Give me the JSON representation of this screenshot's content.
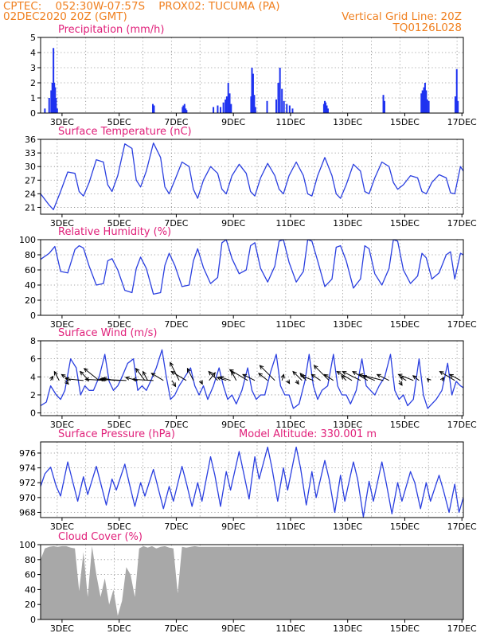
{
  "header": {
    "line1_left": "CPTEC:    052:30W-07:57S    PROX02: TUCUMA (PA)",
    "line2_left": "02DEC2020 20Z (GMT)",
    "line2_right": "Vertical Grid Line: 20Z",
    "line3_right": "TQ0126L028"
  },
  "colors": {
    "header_text": "#f08020",
    "panel_title": "#e0207a",
    "line": "#2a3fe0",
    "bar": "#1e32f0",
    "cloud": "#a8a8a8",
    "grid": "#8a8a8a"
  },
  "chart_data": [
    {
      "id": "precip",
      "type": "bar",
      "title": "Precipitation (mm/h)",
      "ylim": [
        0,
        5
      ],
      "yticks": [
        0,
        1,
        2,
        3,
        4,
        5
      ],
      "xlim": [
        2.25,
        17.05
      ],
      "xtick_days": [
        3,
        5,
        7,
        9,
        11,
        13,
        15,
        17
      ],
      "xtick_labels": [
        "3DEC",
        "5DEC",
        "7DEC",
        "9DEC",
        "11DEC",
        "13DEC",
        "15DEC",
        "17DEC"
      ],
      "grid_days": [
        2.83,
        3.83,
        4.83,
        5.83,
        6.83,
        7.83,
        8.83,
        9.83,
        10.83,
        11.83,
        12.83,
        13.83,
        14.83,
        15.83,
        16.83
      ],
      "x": [
        2.4,
        2.55,
        2.62,
        2.66,
        2.7,
        2.73,
        2.76,
        2.79,
        2.83,
        6.18,
        6.22,
        7.22,
        7.25,
        7.29,
        7.33,
        7.36,
        8.3,
        8.45,
        8.55,
        8.65,
        8.72,
        8.77,
        8.82,
        8.87,
        8.92,
        9.62,
        9.65,
        9.69,
        9.73,
        9.77,
        10.18,
        10.5,
        10.57,
        10.63,
        10.7,
        10.77,
        10.87,
        10.97,
        11.07,
        12.17,
        12.2,
        12.23,
        12.27,
        12.31,
        14.25,
        14.29,
        15.58,
        15.62,
        15.67,
        15.71,
        15.75,
        15.79,
        15.84,
        16.77,
        16.82,
        16.86
      ],
      "values": [
        0.3,
        1.0,
        1.5,
        2.0,
        4.3,
        2.0,
        1.7,
        1.0,
        0.3,
        0.6,
        0.5,
        0.4,
        0.5,
        0.6,
        0.3,
        0.2,
        0.4,
        0.5,
        0.4,
        0.7,
        0.9,
        1.1,
        2.0,
        1.3,
        0.6,
        1.1,
        3.0,
        2.6,
        1.2,
        0.4,
        0.8,
        0.9,
        2.0,
        3.0,
        1.6,
        0.8,
        0.6,
        0.5,
        0.3,
        0.6,
        0.8,
        0.7,
        0.5,
        0.3,
        1.2,
        0.8,
        1.3,
        1.5,
        1.7,
        2.0,
        1.5,
        0.9,
        0.8,
        1.1,
        2.9,
        0.8
      ]
    },
    {
      "id": "temp",
      "type": "line",
      "title": "Surface Temperature (nC)",
      "ylim": [
        19.5,
        36
      ],
      "yticks": [
        21,
        24,
        27,
        30,
        33,
        36
      ],
      "xlim": [
        2.25,
        17.05
      ],
      "xtick_days": [
        3,
        5,
        7,
        9,
        11,
        13,
        15,
        17
      ],
      "xtick_labels": [
        "3DEC",
        "5DEC",
        "7DEC",
        "9DEC",
        "11DEC",
        "13DEC",
        "15DEC",
        "17DEC"
      ],
      "grid_days": [
        2.83,
        3.83,
        4.83,
        5.83,
        6.83,
        7.83,
        8.83,
        9.83,
        10.83,
        11.83,
        12.83,
        13.83,
        14.83,
        15.83,
        16.83
      ],
      "x": [
        2.25,
        2.55,
        2.7,
        2.95,
        3.2,
        3.45,
        3.6,
        3.75,
        3.95,
        4.2,
        4.45,
        4.6,
        4.75,
        4.95,
        5.2,
        5.45,
        5.6,
        5.75,
        5.95,
        6.2,
        6.45,
        6.6,
        6.75,
        6.95,
        7.2,
        7.45,
        7.6,
        7.75,
        7.95,
        8.2,
        8.45,
        8.6,
        8.75,
        8.95,
        9.2,
        9.45,
        9.6,
        9.75,
        9.95,
        10.2,
        10.45,
        10.6,
        10.75,
        10.95,
        11.2,
        11.45,
        11.6,
        11.75,
        11.95,
        12.2,
        12.45,
        12.6,
        12.75,
        12.95,
        13.2,
        13.45,
        13.6,
        13.75,
        13.95,
        14.2,
        14.45,
        14.6,
        14.75,
        14.95,
        15.2,
        15.45,
        15.6,
        15.75,
        15.95,
        16.2,
        16.45,
        16.6,
        16.75,
        16.95,
        17.05
      ],
      "values": [
        24,
        21.5,
        20.5,
        24.5,
        28.8,
        28.5,
        24.5,
        23.5,
        26.5,
        31.5,
        31,
        26,
        24.5,
        28,
        35,
        34,
        27,
        25.5,
        29,
        35.2,
        32,
        25.5,
        24,
        27,
        31,
        30,
        25,
        23,
        27,
        30,
        28.5,
        25,
        24,
        28,
        30.5,
        28.5,
        24.5,
        23.5,
        27.5,
        30.7,
        28,
        25,
        24,
        28,
        31,
        28,
        24,
        23.5,
        28,
        32,
        28,
        24,
        23,
        26,
        30.5,
        29,
        24.5,
        24,
        27.5,
        31,
        30,
        26.5,
        25,
        26,
        28,
        27.5,
        24.5,
        24,
        26.5,
        28.2,
        27.5,
        24.2,
        24,
        30,
        29
      ]
    },
    {
      "id": "rh",
      "type": "line",
      "title": "Relative Humidity (%)",
      "ylim": [
        0,
        100
      ],
      "yticks": [
        0,
        20,
        40,
        60,
        80,
        100
      ],
      "xlim": [
        2.25,
        17.05
      ],
      "xtick_days": [
        3,
        5,
        7,
        9,
        11,
        13,
        15,
        17
      ],
      "xtick_labels": [
        "3DEC",
        "5DEC",
        "7DEC",
        "9DEC",
        "11DEC",
        "13DEC",
        "15DEC",
        "17DEC"
      ],
      "grid_days": [
        2.83,
        3.83,
        4.83,
        5.83,
        6.83,
        7.83,
        8.83,
        9.83,
        10.83,
        11.83,
        12.83,
        13.83,
        14.83,
        15.83,
        16.83
      ],
      "x": [
        2.25,
        2.55,
        2.75,
        2.95,
        3.2,
        3.45,
        3.6,
        3.75,
        3.95,
        4.2,
        4.45,
        4.6,
        4.75,
        4.95,
        5.2,
        5.45,
        5.6,
        5.75,
        5.95,
        6.2,
        6.45,
        6.6,
        6.75,
        6.95,
        7.2,
        7.45,
        7.6,
        7.75,
        7.95,
        8.2,
        8.45,
        8.6,
        8.75,
        8.95,
        9.2,
        9.45,
        9.6,
        9.75,
        9.95,
        10.2,
        10.45,
        10.6,
        10.75,
        10.95,
        11.2,
        11.45,
        11.6,
        11.75,
        11.95,
        12.2,
        12.45,
        12.6,
        12.75,
        12.95,
        13.2,
        13.45,
        13.6,
        13.75,
        13.95,
        14.2,
        14.45,
        14.6,
        14.75,
        14.95,
        15.2,
        15.45,
        15.6,
        15.75,
        15.95,
        16.2,
        16.45,
        16.6,
        16.75,
        16.95,
        17.05
      ],
      "values": [
        74,
        82,
        91,
        58,
        56,
        87,
        92,
        89,
        65,
        40,
        42,
        72,
        75,
        60,
        33,
        30,
        62,
        77,
        62,
        28,
        30,
        66,
        82,
        66,
        38,
        40,
        72,
        88,
        63,
        42,
        50,
        96,
        100,
        75,
        55,
        60,
        92,
        96,
        62,
        44,
        65,
        98,
        100,
        70,
        44,
        58,
        100,
        98,
        72,
        38,
        48,
        90,
        92,
        72,
        36,
        48,
        92,
        88,
        55,
        40,
        62,
        100,
        98,
        60,
        42,
        52,
        82,
        76,
        48,
        56,
        80,
        84,
        48,
        82,
        80
      ]
    },
    {
      "id": "wind",
      "type": "line",
      "title": "Surface Wind (m/s)",
      "ylim": [
        -0.3,
        8
      ],
      "yticks": [
        0,
        2,
        4,
        6,
        8
      ],
      "xlim": [
        2.25,
        17.05
      ],
      "xtick_days": [
        3,
        5,
        7,
        9,
        11,
        13,
        15,
        17
      ],
      "xtick_labels": [
        "3DEC",
        "5DEC",
        "7DEC",
        "9DEC",
        "11DEC",
        "13DEC",
        "15DEC",
        "17DEC"
      ],
      "grid_days": [
        2.83,
        3.83,
        4.83,
        5.83,
        6.83,
        7.83,
        8.83,
        9.83,
        10.83,
        11.83,
        12.83,
        13.83,
        14.83,
        15.83,
        16.83
      ],
      "x": [
        2.25,
        2.45,
        2.6,
        2.8,
        2.95,
        3.1,
        3.3,
        3.5,
        3.65,
        3.8,
        3.95,
        4.1,
        4.3,
        4.5,
        4.65,
        4.8,
        4.95,
        5.1,
        5.3,
        5.5,
        5.65,
        5.8,
        5.95,
        6.1,
        6.3,
        6.5,
        6.65,
        6.8,
        6.95,
        7.1,
        7.3,
        7.5,
        7.65,
        7.8,
        7.95,
        8.1,
        8.3,
        8.5,
        8.65,
        8.8,
        8.95,
        9.1,
        9.3,
        9.5,
        9.65,
        9.8,
        9.95,
        10.1,
        10.3,
        10.5,
        10.65,
        10.8,
        10.95,
        11.1,
        11.3,
        11.5,
        11.65,
        11.8,
        11.95,
        12.1,
        12.3,
        12.5,
        12.65,
        12.8,
        12.95,
        13.1,
        13.3,
        13.5,
        13.65,
        13.8,
        13.95,
        14.1,
        14.3,
        14.5,
        14.65,
        14.8,
        14.95,
        15.1,
        15.3,
        15.5,
        15.65,
        15.8,
        15.95,
        16.1,
        16.3,
        16.5,
        16.65,
        16.8,
        16.95,
        17.05
      ],
      "values": [
        0.8,
        1.2,
        3.0,
        2.0,
        1.5,
        2.5,
        6.0,
        5.0,
        2.0,
        3.0,
        2.5,
        2.5,
        4.0,
        6.5,
        3.5,
        2.5,
        3.0,
        4.0,
        5.5,
        6.0,
        2.5,
        3.0,
        2.5,
        3.5,
        5.0,
        7.0,
        4.0,
        1.5,
        2.0,
        3.0,
        4.0,
        5.0,
        3.0,
        2.0,
        3.0,
        1.5,
        3.0,
        5.0,
        3.0,
        1.5,
        2.0,
        1.0,
        2.5,
        5.0,
        2.5,
        1.5,
        2.0,
        2.0,
        4.5,
        6.5,
        3.0,
        2.0,
        2.0,
        0.5,
        1.0,
        3.5,
        6.5,
        3.0,
        1.5,
        2.5,
        3.0,
        6.5,
        3.0,
        2.0,
        2.0,
        1.0,
        2.5,
        6.0,
        3.0,
        2.5,
        2.0,
        3.0,
        4.0,
        6.5,
        2.5,
        1.5,
        2.0,
        0.8,
        1.5,
        6.0,
        2.0,
        0.5,
        1.0,
        1.5,
        2.5,
        5.5,
        2.0,
        3.5,
        3.0,
        2.8
      ],
      "arrows": {
        "x": [
          2.6,
          2.9,
          3.1,
          3.3,
          3.75,
          3.95,
          4.3,
          4.55,
          4.85,
          5.0,
          5.25,
          5.65,
          5.9,
          6.0,
          6.2,
          6.55,
          6.85,
          7.1,
          7.35,
          7.6,
          7.85,
          8.15,
          8.45,
          8.75,
          8.9,
          9.1,
          9.5,
          9.75,
          10.2,
          10.45,
          10.7,
          10.9,
          11.2,
          11.4,
          11.55,
          11.8,
          12.05,
          12.35,
          12.5,
          12.95,
          13.15,
          13.45,
          13.7,
          13.95,
          14.25,
          14.45,
          14.8,
          15.05,
          15.3,
          15.5,
          15.85,
          16.3,
          16.75,
          16.95
        ],
        "u": [
          0.4,
          -0.8,
          0.6,
          -1.5,
          -3.0,
          -1.5,
          -2.5,
          -3.5,
          -2.0,
          -3.0,
          -4.5,
          -2.0,
          -1.5,
          -0.8,
          -3.5,
          -2.0,
          0.6,
          -1.5,
          -2.5,
          -1.0,
          0.3,
          1.0,
          -1.5,
          -1.5,
          -1.8,
          -0.8,
          -3.0,
          -2.0,
          -1.5,
          -2.5,
          0.3,
          0.3,
          0.4,
          -1.5,
          -1.0,
          -2.0,
          -1.5,
          -2.5,
          -1.5,
          -0.8,
          -2.5,
          -3.0,
          -2.5,
          -2.0,
          -4.0,
          -2.0,
          0.5,
          -1.0,
          -2.5,
          -1.0,
          -0.3,
          0.3,
          -2.5,
          -1.8
        ],
        "v": [
          0.7,
          1.5,
          -0.6,
          1.0,
          0.3,
          1.5,
          2.0,
          0.2,
          0.4,
          0.2,
          0.2,
          0.5,
          2.0,
          1.5,
          0.2,
          1.2,
          -1.0,
          3.0,
          1.5,
          2.0,
          -0.6,
          1.3,
          1.5,
          0.5,
          0.6,
          1.5,
          1.8,
          1.0,
          1.2,
          2.5,
          1.0,
          -0.5,
          -0.6,
          1.5,
          1.2,
          0.8,
          1.0,
          2.5,
          1.0,
          0.8,
          1.5,
          1.5,
          1.5,
          0.8,
          1.0,
          1.0,
          -0.8,
          0.6,
          1.0,
          0.8,
          0.3,
          0.5,
          1.5,
          1.0
        ]
      }
    },
    {
      "id": "pressure",
      "type": "line",
      "title": "Surface Pressure (hPa)",
      "subtitle": "Model Altitude: 330.001 m",
      "ylim": [
        967.3,
        977.5
      ],
      "yticks": [
        968,
        970,
        972,
        974,
        976
      ],
      "xlim": [
        2.25,
        17.05
      ],
      "xtick_days": [
        3,
        5,
        7,
        9,
        11,
        13,
        15,
        17
      ],
      "xtick_labels": [
        "3DEC",
        "5DEC",
        "7DEC",
        "9DEC",
        "11DEC",
        "13DEC",
        "15DEC",
        "17DEC"
      ],
      "grid_days": [
        2.83,
        3.83,
        4.83,
        5.83,
        6.83,
        7.83,
        8.83,
        9.83,
        10.83,
        11.83,
        12.83,
        13.83,
        14.83,
        15.83,
        16.83
      ],
      "x": [
        2.25,
        2.4,
        2.6,
        2.8,
        2.95,
        3.2,
        3.35,
        3.55,
        3.75,
        3.9,
        4.2,
        4.35,
        4.55,
        4.75,
        4.9,
        5.2,
        5.35,
        5.55,
        5.75,
        5.9,
        6.2,
        6.35,
        6.55,
        6.75,
        6.9,
        7.2,
        7.35,
        7.55,
        7.75,
        7.9,
        8.2,
        8.35,
        8.55,
        8.75,
        8.9,
        9.2,
        9.35,
        9.55,
        9.75,
        9.9,
        10.2,
        10.35,
        10.55,
        10.75,
        10.9,
        11.2,
        11.35,
        11.55,
        11.75,
        11.9,
        12.2,
        12.35,
        12.55,
        12.75,
        12.9,
        13.2,
        13.35,
        13.55,
        13.75,
        13.9,
        14.2,
        14.35,
        14.55,
        14.75,
        14.9,
        15.2,
        15.35,
        15.55,
        15.75,
        15.9,
        16.2,
        16.35,
        16.55,
        16.75,
        16.9,
        17.05
      ],
      "values": [
        971.5,
        973.2,
        974.1,
        971.5,
        970.2,
        974.8,
        972.5,
        969.5,
        972.8,
        970.4,
        974.2,
        972.0,
        969.0,
        972.5,
        971.0,
        974.5,
        972.0,
        968.8,
        972.0,
        970.2,
        973.8,
        971.5,
        968.5,
        971.5,
        969.5,
        974.2,
        972.0,
        968.8,
        972.0,
        969.5,
        975.5,
        973.0,
        968.8,
        973.5,
        971.0,
        976.2,
        973.5,
        969.8,
        975.5,
        972.5,
        976.8,
        974.0,
        969.5,
        974.0,
        971.0,
        976.8,
        974.0,
        969.0,
        973.5,
        970.0,
        975.0,
        972.5,
        968.0,
        973.0,
        969.5,
        974.8,
        972.5,
        967.4,
        972.2,
        969.5,
        974.8,
        972.0,
        967.8,
        972.0,
        969.5,
        973.5,
        972.0,
        968.5,
        972.0,
        969.5,
        973.0,
        971.0,
        968.0,
        971.8,
        968.0,
        970.0
      ]
    },
    {
      "id": "cloud",
      "type": "area",
      "title": "Cloud Cover (%)",
      "ylim": [
        0,
        100
      ],
      "yticks": [
        0,
        20,
        40,
        60,
        80,
        100
      ],
      "xlim": [
        2.25,
        17.05
      ],
      "xtick_days": [
        3,
        5,
        7,
        9,
        11,
        13,
        15,
        17
      ],
      "xtick_labels": [
        "3DEC",
        "5DEC",
        "7DEC",
        "9DEC",
        "11DEC",
        "13DEC",
        "15DEC",
        "17DEC"
      ],
      "grid_days": [
        2.83,
        3.83,
        4.83,
        5.83,
        6.83,
        7.83,
        8.83,
        9.83,
        10.83,
        11.83,
        12.83,
        13.83,
        14.83,
        15.83,
        16.83
      ],
      "x": [
        2.25,
        2.4,
        2.55,
        2.7,
        2.85,
        3.0,
        3.15,
        3.3,
        3.45,
        3.6,
        3.75,
        3.9,
        4.05,
        4.2,
        4.35,
        4.5,
        4.65,
        4.8,
        4.95,
        5.1,
        5.25,
        5.4,
        5.55,
        5.7,
        5.85,
        6.0,
        6.15,
        6.3,
        6.45,
        6.6,
        6.75,
        6.9,
        7.05,
        7.2,
        7.35,
        7.5,
        7.65,
        7.8,
        17.05
      ],
      "values": [
        80,
        95,
        97,
        98,
        97,
        98,
        98,
        96,
        95,
        38,
        90,
        30,
        98,
        60,
        30,
        55,
        20,
        40,
        5,
        25,
        70,
        60,
        30,
        95,
        98,
        96,
        98,
        95,
        97,
        98,
        96,
        95,
        35,
        97,
        96,
        97,
        98,
        97,
        97
      ]
    }
  ]
}
